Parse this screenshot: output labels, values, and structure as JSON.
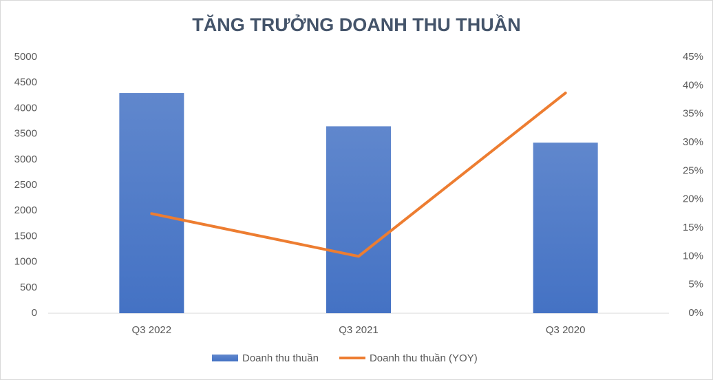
{
  "chart_data": {
    "type": "bar_line",
    "title": "TĂNG TRƯỞNG DOANH THU THUẦN",
    "categories": [
      "Q3 2022",
      "Q3 2021",
      "Q3 2020"
    ],
    "series": [
      {
        "name": "Doanh thu thuần",
        "type": "bar",
        "color": "#4472c4",
        "values": [
          4300,
          3650,
          3330
        ]
      },
      {
        "name": "Doanh thu thuần (YOY)",
        "type": "line",
        "color": "#ed7d31",
        "axis": "y2",
        "values": [
          17.5,
          10,
          38.7
        ]
      }
    ],
    "ylim": [
      0,
      5000
    ],
    "yticks": [
      0,
      500,
      1000,
      1500,
      2000,
      2500,
      3000,
      3500,
      4000,
      4500,
      5000
    ],
    "y2lim": [
      0,
      45
    ],
    "y2ticks": [
      {
        "value": 0,
        "label": "0%"
      },
      {
        "value": 5,
        "label": "5%"
      },
      {
        "value": 10,
        "label": "10%"
      },
      {
        "value": 15,
        "label": "15%"
      },
      {
        "value": 20,
        "label": "20%"
      },
      {
        "value": 25,
        "label": "25%"
      },
      {
        "value": 30,
        "label": "30%"
      },
      {
        "value": 35,
        "label": "35%"
      },
      {
        "value": 40,
        "label": "40%"
      },
      {
        "value": 45,
        "label": "45%"
      }
    ],
    "legend": "bottom"
  }
}
